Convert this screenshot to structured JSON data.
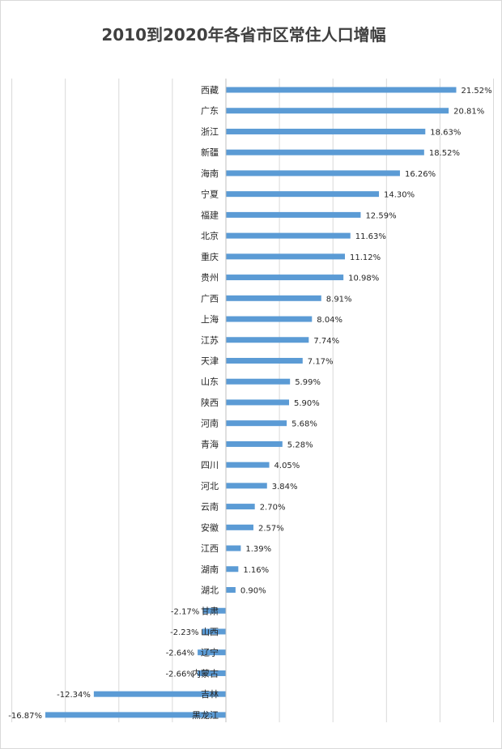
{
  "chart_data": {
    "type": "bar",
    "orientation": "horizontal",
    "title": "2010到2020年各省市区常住人口增幅",
    "xlabel": "",
    "ylabel": "",
    "xlim": [
      -20,
      25
    ],
    "grid": true,
    "legend": "none",
    "color": "#5b9bd5",
    "categories": [
      "西藏",
      "广东",
      "浙江",
      "新疆",
      "海南",
      "宁夏",
      "福建",
      "北京",
      "重庆",
      "贵州",
      "广西",
      "上海",
      "江苏",
      "天津",
      "山东",
      "陕西",
      "河南",
      "青海",
      "四川",
      "河北",
      "云南",
      "安徽",
      "江西",
      "湖南",
      "湖北",
      "甘肃",
      "山西",
      "辽宁",
      "内蒙古",
      "吉林",
      "黑龙江"
    ],
    "values": [
      21.52,
      20.81,
      18.63,
      18.52,
      16.26,
      14.3,
      12.59,
      11.63,
      11.12,
      10.98,
      8.91,
      8.04,
      7.74,
      7.17,
      5.99,
      5.9,
      5.68,
      5.28,
      4.05,
      3.84,
      2.7,
      2.57,
      1.39,
      1.16,
      0.9,
      -2.17,
      -2.23,
      -2.64,
      -2.66,
      -12.34,
      -16.87
    ],
    "labels": [
      "21.52%",
      "20.81%",
      "18.63%",
      "18.52%",
      "16.26%",
      "14.30%",
      "12.59%",
      "11.63%",
      "11.12%",
      "10.98%",
      "8.91%",
      "8.04%",
      "7.74%",
      "7.17%",
      "5.99%",
      "5.90%",
      "5.68%",
      "5.28%",
      "4.05%",
      "3.84%",
      "2.70%",
      "2.57%",
      "1.39%",
      "1.16%",
      "0.90%",
      "-2.17%",
      "-2.23%",
      "-2.64%",
      "-2.66%",
      "-12.34%",
      "-16.87%"
    ]
  }
}
